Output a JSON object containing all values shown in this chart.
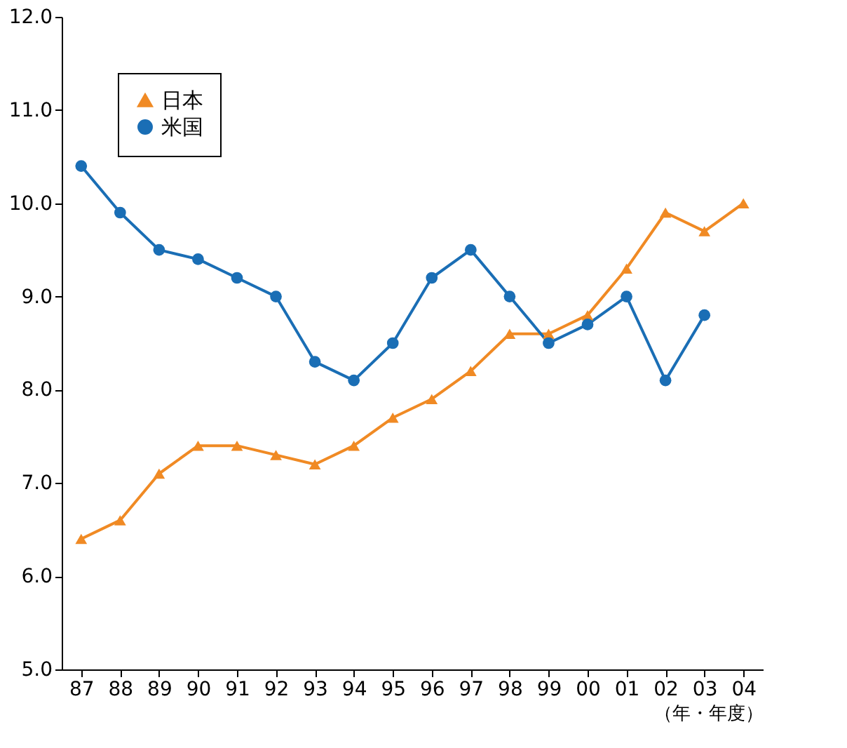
{
  "chart_data": {
    "type": "line",
    "xlabel": "（年・年度）",
    "categories": [
      "87",
      "88",
      "89",
      "90",
      "91",
      "92",
      "93",
      "94",
      "95",
      "96",
      "97",
      "98",
      "99",
      "00",
      "01",
      "02",
      "03",
      "04"
    ],
    "series": [
      {
        "name": "日本",
        "color": "#f08a24",
        "marker": "triangle",
        "values": [
          6.4,
          6.6,
          7.1,
          7.4,
          7.4,
          7.3,
          7.2,
          7.4,
          7.7,
          7.9,
          8.2,
          8.6,
          8.6,
          8.8,
          9.3,
          9.9,
          9.7,
          10.0
        ]
      },
      {
        "name": "米国",
        "color": "#1a6eb5",
        "marker": "circle",
        "values": [
          10.4,
          9.9,
          9.5,
          9.4,
          9.2,
          9.0,
          8.3,
          8.1,
          8.5,
          9.2,
          9.5,
          9.0,
          8.5,
          8.7,
          9.0,
          8.1,
          8.8,
          null
        ]
      }
    ],
    "ylim": [
      5,
      12
    ],
    "yticks": [
      {
        "value": 5,
        "label": "5.0"
      },
      {
        "value": 6,
        "label": "6.0"
      },
      {
        "value": 7,
        "label": "7.0"
      },
      {
        "value": 8,
        "label": "8.0"
      },
      {
        "value": 9,
        "label": "9.0"
      },
      {
        "value": 10,
        "label": "10.0"
      },
      {
        "value": 11,
        "label": "11.0"
      },
      {
        "value": 12,
        "label": "12.0"
      }
    ],
    "grid": false,
    "legend": "top left",
    "line_style": "solid"
  }
}
